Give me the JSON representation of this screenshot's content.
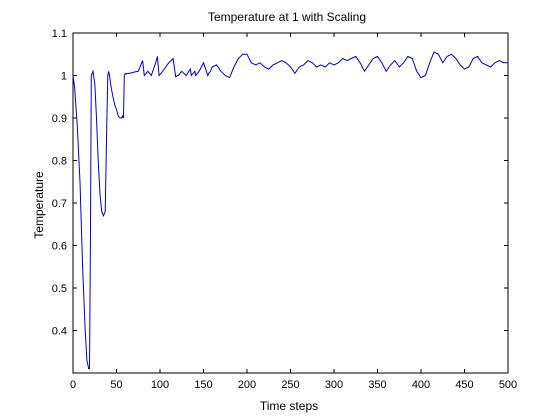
{
  "chart_data": {
    "type": "line",
    "title": "Temperature at 1 with Scaling",
    "xlabel": "Time steps",
    "ylabel": "Temperature",
    "xlim": [
      0,
      500
    ],
    "ylim": [
      0.3,
      1.1
    ],
    "xticks": [
      0,
      50,
      100,
      150,
      200,
      250,
      300,
      350,
      400,
      450,
      500
    ],
    "yticks": [
      0.4,
      0.5,
      0.6,
      0.7,
      0.8,
      0.9,
      1.0,
      1.1
    ],
    "ytick_labels": [
      "0.4",
      "0.5",
      "0.6",
      "0.7",
      "0.8",
      "0.9",
      "1",
      "1.1"
    ],
    "grid": false,
    "line_color": "#0000cc",
    "series": [
      {
        "x": [
          0,
          2,
          5,
          8,
          11,
          14,
          16,
          18,
          19,
          20,
          21,
          23,
          25,
          27,
          29,
          31,
          33,
          35,
          37,
          39,
          40,
          41,
          42,
          44,
          46,
          48,
          50,
          52,
          54,
          56,
          57,
          58,
          59,
          60,
          61,
          62,
          65,
          70,
          75,
          80,
          82,
          84,
          86,
          90,
          95,
          97,
          99,
          101,
          103,
          105,
          110,
          115,
          118,
          120,
          121,
          125,
          130,
          135,
          136,
          138,
          140,
          141,
          145,
          150,
          155,
          156,
          158,
          160,
          165,
          170,
          175,
          180,
          185,
          190,
          195,
          200,
          205,
          210,
          215,
          220,
          225,
          230,
          235,
          240,
          245,
          250,
          255,
          260,
          265,
          270,
          275,
          280,
          285,
          290,
          295,
          300,
          305,
          310,
          315,
          320,
          325,
          330,
          335,
          340,
          345,
          350,
          355,
          360,
          365,
          370,
          375,
          380,
          385,
          390,
          395,
          400,
          405,
          410,
          415,
          420,
          425,
          430,
          435,
          440,
          445,
          450,
          455,
          460,
          465,
          470,
          475,
          480,
          485,
          490,
          495,
          500
        ],
        "y": [
          1.0,
          0.97,
          0.88,
          0.75,
          0.55,
          0.4,
          0.33,
          0.31,
          0.31,
          0.6,
          1.0,
          1.01,
          0.98,
          0.9,
          0.8,
          0.72,
          0.68,
          0.67,
          0.68,
          0.9,
          1.0,
          1.01,
          1.0,
          0.97,
          0.95,
          0.93,
          0.92,
          0.905,
          0.9,
          0.9,
          0.905,
          0.9,
          1.0,
          1.005,
          1.003,
          1.005,
          1.005,
          1.008,
          1.01,
          1.035,
          1.0,
          1.005,
          1.01,
          1.0,
          1.03,
          1.045,
          1.0,
          1.005,
          1.01,
          1.015,
          1.03,
          1.04,
          0.997,
          1.0,
          1.0,
          1.01,
          1.0,
          1.015,
          1.0,
          1.005,
          1.01,
          1.0,
          1.01,
          1.03,
          1.0,
          1.005,
          1.01,
          1.02,
          1.025,
          1.01,
          1.0,
          0.995,
          1.02,
          1.04,
          1.05,
          1.05,
          1.03,
          1.025,
          1.03,
          1.02,
          1.015,
          1.025,
          1.03,
          1.035,
          1.03,
          1.02,
          1.005,
          1.02,
          1.025,
          1.035,
          1.03,
          1.02,
          1.025,
          1.02,
          1.03,
          1.025,
          1.03,
          1.04,
          1.035,
          1.04,
          1.045,
          1.03,
          1.01,
          1.025,
          1.04,
          1.045,
          1.03,
          1.01,
          1.025,
          1.035,
          1.02,
          1.03,
          1.045,
          1.04,
          1.01,
          0.995,
          1.0,
          1.03,
          1.055,
          1.05,
          1.03,
          1.045,
          1.05,
          1.04,
          1.025,
          1.015,
          1.02,
          1.04,
          1.045,
          1.03,
          1.025,
          1.02,
          1.03,
          1.035,
          1.03,
          1.03
        ]
      }
    ]
  }
}
